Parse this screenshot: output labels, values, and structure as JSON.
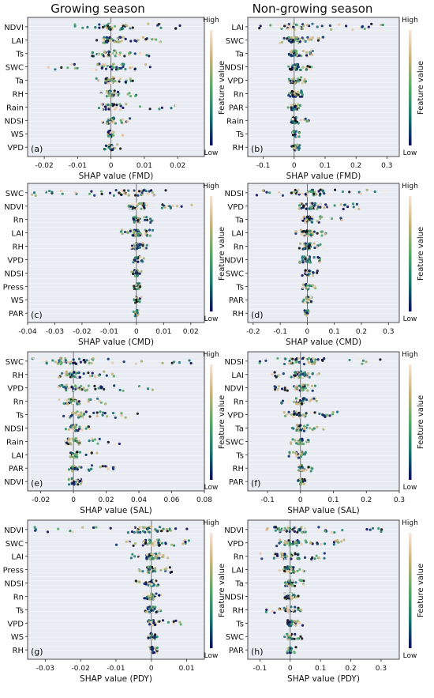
{
  "column_titles": [
    "Growing season",
    "Non-growing season"
  ],
  "colorbar": {
    "high": "High",
    "low": "Low",
    "label": "Feature value",
    "colors": [
      "#0b0b5a",
      "#1a7a6e",
      "#5aa86a",
      "#c9b27a",
      "#f6e6dc"
    ]
  },
  "chart_data": [
    {
      "type": "scatter",
      "panel": "(a)",
      "xlabel": "SHAP value (FMD)",
      "features": [
        "NDVI",
        "LAI",
        "Ts",
        "SWC",
        "Ta",
        "RH",
        "Rain",
        "NDSI",
        "WS",
        "VPD"
      ],
      "xticks": [
        -0.02,
        -0.01,
        0.0,
        0.01,
        0.02
      ],
      "xlim": [
        -0.025,
        0.028
      ],
      "spans": [
        [
          -0.012,
          0.026
        ],
        [
          -0.006,
          0.015
        ],
        [
          -0.006,
          0.012
        ],
        [
          -0.021,
          0.016
        ],
        [
          -0.005,
          0.007
        ],
        [
          -0.004,
          0.008
        ],
        [
          -0.004,
          0.02
        ],
        [
          -0.003,
          0.006
        ],
        [
          -0.003,
          0.005
        ],
        [
          -0.002,
          0.003
        ]
      ]
    },
    {
      "type": "scatter",
      "panel": "(b)",
      "xlabel": "SHAP value (FMD)",
      "features": [
        "LAI",
        "SWC",
        "Ta",
        "NDSI",
        "VPD",
        "Rn",
        "PAR",
        "Rain",
        "Ts",
        "RH"
      ],
      "xticks": [
        -0.1,
        0.0,
        0.1,
        0.2,
        0.3
      ],
      "xlim": [
        -0.15,
        0.34
      ],
      "spans": [
        [
          -0.12,
          0.31
        ],
        [
          -0.05,
          0.1
        ],
        [
          -0.02,
          0.06
        ],
        [
          -0.03,
          0.07
        ],
        [
          -0.02,
          0.04
        ],
        [
          -0.02,
          0.03
        ],
        [
          -0.02,
          0.02
        ],
        [
          -0.01,
          0.05
        ],
        [
          -0.01,
          0.02
        ],
        [
          -0.01,
          0.02
        ]
      ]
    },
    {
      "type": "scatter",
      "panel": "(c)",
      "xlabel": "SHAP value (CMD)",
      "features": [
        "SWC",
        "NDVI",
        "Rn",
        "LAI",
        "RH",
        "VPD",
        "NDSI",
        "Press",
        "WS",
        "PAR"
      ],
      "xticks": [
        -0.04,
        -0.03,
        -0.02,
        -0.01,
        0.0,
        0.01,
        0.02
      ],
      "xlim": [
        -0.04,
        0.025
      ],
      "spans": [
        [
          -0.04,
          0.012
        ],
        [
          -0.003,
          0.022
        ],
        [
          -0.002,
          0.007
        ],
        [
          -0.006,
          0.006
        ],
        [
          -0.002,
          0.004
        ],
        [
          -0.002,
          0.003
        ],
        [
          -0.002,
          0.002
        ],
        [
          -0.001,
          0.002
        ],
        [
          -0.001,
          0.002
        ],
        [
          -0.001,
          0.001
        ]
      ]
    },
    {
      "type": "scatter",
      "panel": "(d)",
      "xlabel": "SHAP value (CMD)",
      "features": [
        "NDSI",
        "VPD",
        "Ta",
        "LAI",
        "Rn",
        "NDVI",
        "SWC",
        "Ts",
        "PAR",
        "RH"
      ],
      "xticks": [
        -0.2,
        -0.1,
        0.0,
        0.1,
        0.2,
        0.3
      ],
      "xlim": [
        -0.22,
        0.34
      ],
      "spans": [
        [
          -0.2,
          0.3
        ],
        [
          -0.02,
          0.22
        ],
        [
          -0.03,
          0.13
        ],
        [
          -0.05,
          0.07
        ],
        [
          -0.03,
          0.06
        ],
        [
          -0.03,
          0.05
        ],
        [
          -0.02,
          0.04
        ],
        [
          -0.02,
          0.03
        ],
        [
          -0.02,
          0.02
        ],
        [
          -0.01,
          0.01
        ]
      ]
    },
    {
      "type": "scatter",
      "panel": "(e)",
      "xlabel": "SHAP value (SAL)",
      "features": [
        "SWC",
        "RH",
        "VPD",
        "Rn",
        "Ts",
        "NDSI",
        "Rain",
        "LAI",
        "PAR",
        "NDVI"
      ],
      "xticks": [
        -0.02,
        0.0,
        0.02,
        0.04,
        0.06,
        0.08
      ],
      "xlim": [
        -0.028,
        0.08
      ],
      "spans": [
        [
          -0.026,
          0.075
        ],
        [
          -0.01,
          0.025
        ],
        [
          -0.01,
          0.055
        ],
        [
          -0.01,
          0.02
        ],
        [
          -0.01,
          0.04
        ],
        [
          -0.005,
          0.01
        ],
        [
          -0.005,
          0.03
        ],
        [
          -0.005,
          0.015
        ],
        [
          -0.005,
          0.025
        ],
        [
          -0.003,
          0.005
        ]
      ]
    },
    {
      "type": "scatter",
      "panel": "(f)",
      "xlabel": "SHAP value (SAL)",
      "features": [
        "NDSI",
        "LAI",
        "NDVI",
        "Rn",
        "VPD",
        "Ta",
        "SWC",
        "Ts",
        "RH",
        "PAR"
      ],
      "xticks": [
        -0.1,
        0.0,
        0.1,
        0.2,
        0.3
      ],
      "xlim": [
        -0.16,
        0.3
      ],
      "spans": [
        [
          -0.13,
          0.27
        ],
        [
          -0.1,
          0.06
        ],
        [
          -0.08,
          0.05
        ],
        [
          -0.06,
          0.05
        ],
        [
          -0.05,
          0.12
        ],
        [
          -0.03,
          0.08
        ],
        [
          -0.03,
          0.03
        ],
        [
          -0.04,
          0.02
        ],
        [
          -0.01,
          0.05
        ],
        [
          -0.01,
          0.02
        ]
      ]
    },
    {
      "type": "scatter",
      "panel": "(g)",
      "xlabel": "SHAP value (PDY)",
      "features": [
        "NDVI",
        "SWC",
        "LAI",
        "Press",
        "NDSI",
        "Rn",
        "Ts",
        "VPD",
        "WS",
        "RH"
      ],
      "xticks": [
        -0.03,
        -0.02,
        -0.01,
        0.0,
        0.01
      ],
      "xlim": [
        -0.035,
        0.015
      ],
      "spans": [
        [
          -0.033,
          0.012
        ],
        [
          -0.01,
          0.011
        ],
        [
          -0.006,
          0.005
        ],
        [
          -0.004,
          0.006
        ],
        [
          -0.005,
          0.002
        ],
        [
          -0.002,
          0.003
        ],
        [
          -0.002,
          0.003
        ],
        [
          -0.001,
          0.009
        ],
        [
          -0.001,
          0.002
        ],
        [
          -0.001,
          0.002
        ]
      ]
    },
    {
      "type": "scatter",
      "panel": "(h)",
      "xlabel": "SHAP value (PDY)",
      "features": [
        "NDVI",
        "VPD",
        "Rn",
        "LAI",
        "Ta",
        "NDSI",
        "RH",
        "Ts",
        "SWC",
        "PAR"
      ],
      "xticks": [
        -0.1,
        0.0,
        0.1,
        0.2,
        0.3
      ],
      "xlim": [
        -0.14,
        0.36
      ],
      "spans": [
        [
          -0.1,
          0.33
        ],
        [
          -0.05,
          0.18
        ],
        [
          -0.1,
          0.13
        ],
        [
          -0.04,
          0.05
        ],
        [
          -0.02,
          0.05
        ],
        [
          -0.02,
          0.03
        ],
        [
          -0.08,
          0.05
        ],
        [
          -0.01,
          0.05
        ],
        [
          -0.02,
          0.04
        ],
        [
          -0.01,
          0.02
        ]
      ]
    }
  ]
}
